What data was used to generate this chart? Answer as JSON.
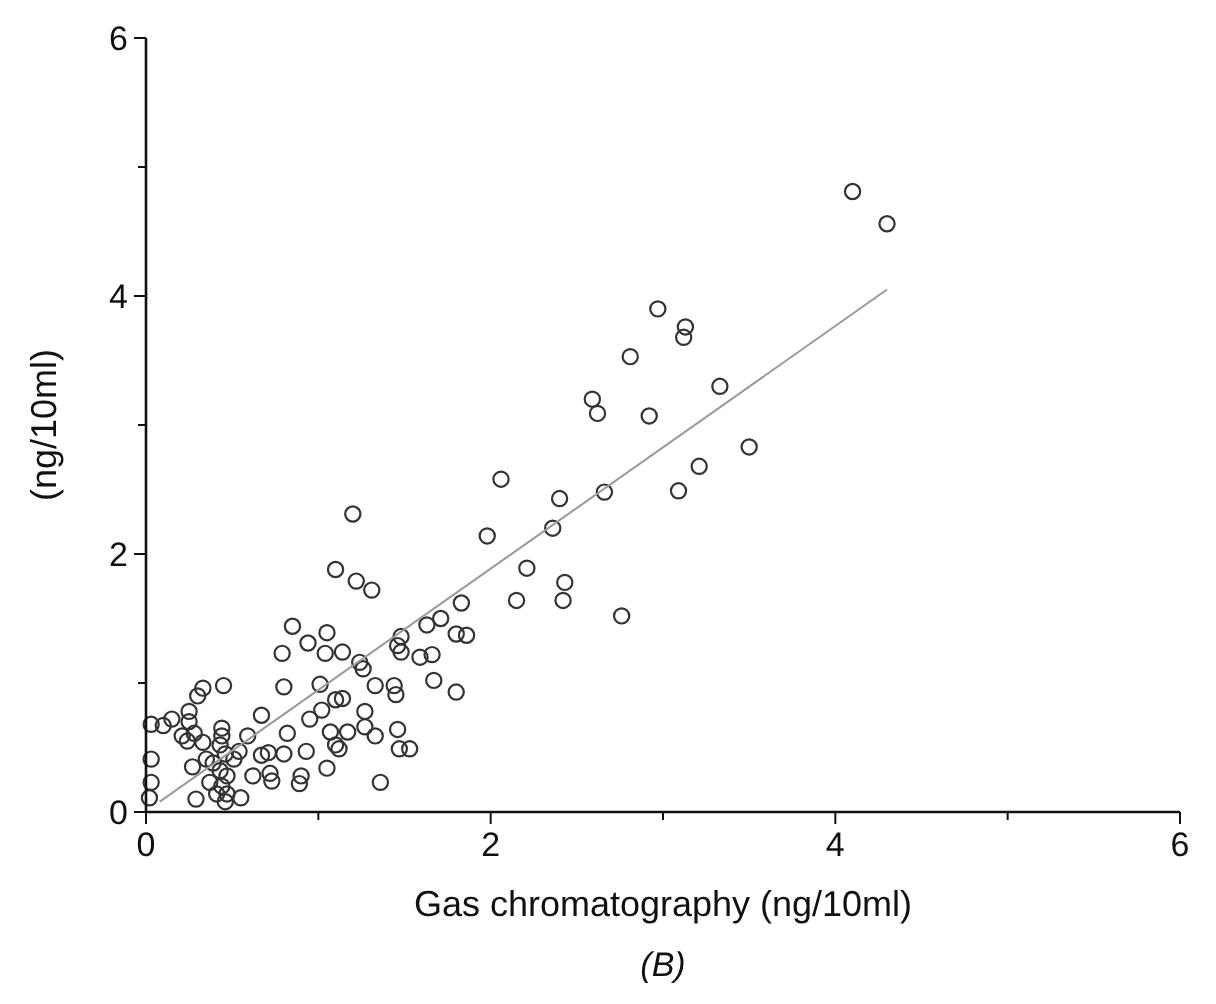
{
  "chart_data": {
    "type": "scatter",
    "xlabel": "Gas chromatography (ng/10ml)",
    "ylabel": "(ng/10ml)",
    "annotations": [
      "(B)"
    ],
    "xlim": [
      0,
      6
    ],
    "ylim": [
      0,
      6
    ],
    "xticks": [
      0,
      {
        "value": 1,
        "label": null
      },
      2,
      {
        "value": 3,
        "label": null
      },
      4,
      {
        "value": 5,
        "label": null
      },
      6
    ],
    "yticks": [
      0,
      {
        "value": 1,
        "label": null
      },
      2,
      {
        "value": 3,
        "label": null
      },
      4,
      {
        "value": 5,
        "label": null
      },
      6
    ],
    "marker": "circle",
    "series": [
      {
        "color": "#333333",
        "x": [
          4.1,
          4.3,
          2.97,
          3.13,
          3.12,
          2.81,
          3.33,
          2.59,
          2.62,
          2.92,
          3.5,
          3.21,
          3.09,
          2.66,
          2.4,
          2.06,
          1.98,
          2.36,
          2.21,
          2.43,
          2.42,
          2.15,
          2.76,
          1.2,
          1.1,
          1.22,
          1.31,
          1.83,
          1.71,
          1.63,
          1.8,
          1.86,
          1.48,
          1.46,
          1.48,
          1.59,
          1.66,
          1.67,
          1.8,
          0.85,
          1.05,
          0.94,
          1.04,
          1.14,
          0.79,
          1.24,
          1.26,
          1.01,
          0.8,
          1.33,
          1.44,
          1.45,
          1.1,
          1.14,
          1.02,
          1.27,
          0.95,
          0.67,
          1.27,
          1.07,
          1.17,
          1.46,
          1.33,
          0.82,
          0.59,
          1.1,
          1.47,
          1.53,
          1.12,
          0.93,
          0.8,
          0.71,
          0.67,
          1.36,
          1.05,
          0.9,
          0.89,
          0.72,
          0.73,
          0.62,
          0.55,
          0.45,
          0.33,
          0.3,
          0.25,
          0.25,
          0.15,
          0.1,
          0.21,
          0.28,
          0.24,
          0.44,
          0.44,
          0.33,
          0.43,
          0.46,
          0.54,
          0.35,
          0.39,
          0.27,
          0.43,
          0.47,
          0.51,
          0.44,
          0.41,
          0.47,
          0.37,
          0.29,
          0.46,
          0.03,
          0.03,
          0.03,
          0.02
        ],
        "values": [
          4.81,
          4.56,
          3.9,
          3.76,
          3.68,
          3.53,
          3.3,
          3.2,
          3.09,
          3.07,
          2.83,
          2.68,
          2.49,
          2.48,
          2.43,
          2.58,
          2.14,
          2.2,
          1.89,
          1.78,
          1.64,
          1.64,
          1.52,
          2.31,
          1.88,
          1.79,
          1.72,
          1.62,
          1.5,
          1.45,
          1.38,
          1.37,
          1.36,
          1.29,
          1.24,
          1.2,
          1.22,
          1.02,
          0.93,
          1.44,
          1.39,
          1.31,
          1.23,
          1.24,
          1.23,
          1.16,
          1.11,
          0.99,
          0.97,
          0.98,
          0.98,
          0.91,
          0.87,
          0.88,
          0.79,
          0.78,
          0.72,
          0.75,
          0.66,
          0.62,
          0.62,
          0.64,
          0.59,
          0.61,
          0.59,
          0.52,
          0.49,
          0.49,
          0.49,
          0.47,
          0.45,
          0.46,
          0.44,
          0.23,
          0.34,
          0.28,
          0.22,
          0.3,
          0.24,
          0.28,
          0.11,
          0.98,
          0.96,
          0.9,
          0.78,
          0.7,
          0.72,
          0.67,
          0.59,
          0.61,
          0.55,
          0.65,
          0.59,
          0.54,
          0.52,
          0.45,
          0.47,
          0.41,
          0.38,
          0.35,
          0.32,
          0.28,
          0.41,
          0.2,
          0.14,
          0.14,
          0.23,
          0.1,
          0.08,
          0.68,
          0.41,
          0.23,
          0.11
        ]
      },
      {
        "type": "line",
        "color": "#999999",
        "marker": "none",
        "x": [
          0.08,
          4.3
        ],
        "values": [
          0.08,
          4.05
        ]
      }
    ]
  }
}
